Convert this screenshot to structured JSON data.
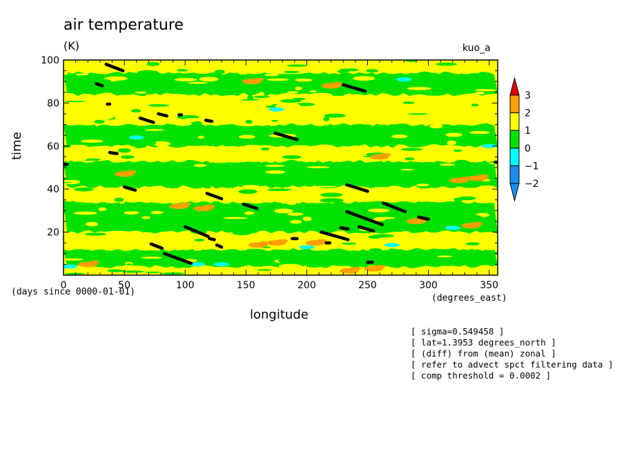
{
  "header": {
    "title": "air temperature",
    "units": "(K)",
    "run_label": "kuo_a"
  },
  "axes": {
    "xlabel": "longitude",
    "ylabel": "time",
    "x_units": "(degrees_east)",
    "time_units": "(days since 0000-01-01)"
  },
  "notes": [
    "[ sigma=0.549458 ]",
    "[ lat=1.3953 degrees_north ]",
    "[ (diff) from (mean) zonal ]",
    "[ refer to advect spct filtering data ]",
    "[ comp threshold = 0.0002 ]"
  ],
  "chart_data": {
    "type": "heatmap",
    "title": "air temperature",
    "units": "(K)",
    "xlabel": "longitude",
    "ylabel": "time",
    "xlim": [
      0,
      357
    ],
    "ylim": [
      0,
      100
    ],
    "x_ticks": [
      0,
      50,
      100,
      150,
      200,
      250,
      300,
      350
    ],
    "y_ticks": [
      20,
      40,
      60,
      80,
      100
    ],
    "colorbar": {
      "levels": [
        -2,
        -1,
        0,
        1,
        2,
        3
      ],
      "colors": [
        "#1e8cf0",
        "#00ffff",
        "#00e100",
        "#ffff00",
        "#ffa000",
        "#e60000"
      ],
      "extend": "both"
    },
    "background_band_colors": [
      "#00e100",
      "#00ffff"
    ],
    "bands": [
      {
        "t": [
          0,
          4
        ],
        "value": 0.3
      },
      {
        "t": [
          4,
          12
        ],
        "value": -0.4
      },
      {
        "t": [
          12,
          20
        ],
        "value": 0.4
      },
      {
        "t": [
          20,
          34
        ],
        "value": -0.3
      },
      {
        "t": [
          34,
          41
        ],
        "value": 0.5
      },
      {
        "t": [
          41,
          53
        ],
        "value": -0.5
      },
      {
        "t": [
          53,
          60
        ],
        "value": 0.3
      },
      {
        "t": [
          60,
          70
        ],
        "value": -0.4
      },
      {
        "t": [
          70,
          84
        ],
        "value": 0.5
      },
      {
        "t": [
          84,
          94
        ],
        "value": -0.3
      },
      {
        "t": [
          94,
          100
        ],
        "value": 0.4
      }
    ],
    "warm_patches": [
      {
        "lon": 95,
        "t": 32,
        "value": 1.3
      },
      {
        "lon": 115,
        "t": 31,
        "value": 1.2
      },
      {
        "lon": 160,
        "t": 14,
        "value": 1.2
      },
      {
        "lon": 175,
        "t": 15,
        "value": 1.1
      },
      {
        "lon": 207,
        "t": 15,
        "value": 1.2
      },
      {
        "lon": 235,
        "t": 2,
        "value": 1.2
      },
      {
        "lon": 255,
        "t": 3,
        "value": 1.1
      },
      {
        "lon": 290,
        "t": 25,
        "value": 1.2
      },
      {
        "lon": 325,
        "t": 44,
        "value": 1.1
      },
      {
        "lon": 340,
        "t": 45,
        "value": 1.2
      },
      {
        "lon": 335,
        "t": 23,
        "value": 1.1
      },
      {
        "lon": 20,
        "t": 5,
        "value": 1.1
      },
      {
        "lon": 155,
        "t": 90,
        "value": 1.1
      },
      {
        "lon": 220,
        "t": 88,
        "value": 1.1
      },
      {
        "lon": 50,
        "t": 47,
        "value": 1.1
      },
      {
        "lon": 260,
        "t": 55,
        "value": 1.1
      }
    ],
    "cold_patches": [
      {
        "lon": 5,
        "t": 4,
        "value": -1.2
      },
      {
        "lon": 110,
        "t": 5,
        "value": -1.3
      },
      {
        "lon": 130,
        "t": 5,
        "value": -1.2
      },
      {
        "lon": 200,
        "t": 13,
        "value": -1.1
      },
      {
        "lon": 270,
        "t": 14,
        "value": -1.1
      },
      {
        "lon": 320,
        "t": 22,
        "value": -1.2
      },
      {
        "lon": 350,
        "t": 60,
        "value": -1.1
      },
      {
        "lon": 175,
        "t": 77,
        "value": -1.1
      },
      {
        "lon": 60,
        "t": 64,
        "value": -1.1
      },
      {
        "lon": 280,
        "t": 91,
        "value": -1.1
      }
    ],
    "dark_segments": [
      {
        "x": [
          35,
          49
        ],
        "t": [
          98,
          95
        ]
      },
      {
        "x": [
          27,
          32
        ],
        "t": [
          89,
          88
        ]
      },
      {
        "x": [
          36,
          38
        ],
        "t": [
          79.5,
          79.5
        ]
      },
      {
        "x": [
          63,
          74
        ],
        "t": [
          73,
          71
        ]
      },
      {
        "x": [
          78,
          85
        ],
        "t": [
          75,
          74
        ]
      },
      {
        "x": [
          95,
          97
        ],
        "t": [
          74.5,
          74.5
        ]
      },
      {
        "x": [
          117,
          122
        ],
        "t": [
          72,
          71.5
        ]
      },
      {
        "x": [
          38,
          44
        ],
        "t": [
          57,
          56.5
        ]
      },
      {
        "x": [
          174,
          192
        ],
        "t": [
          66,
          63
        ]
      },
      {
        "x": [
          230,
          248
        ],
        "t": [
          88.5,
          85.5
        ]
      },
      {
        "x": [
          0,
          3
        ],
        "t": [
          51.5,
          51.5
        ]
      },
      {
        "x": [
          355,
          357
        ],
        "t": [
          52.5,
          52.5
        ]
      },
      {
        "x": [
          50,
          59
        ],
        "t": [
          41,
          39.5
        ]
      },
      {
        "x": [
          118,
          130
        ],
        "t": [
          38,
          35.5
        ]
      },
      {
        "x": [
          148,
          159
        ],
        "t": [
          33,
          31
        ]
      },
      {
        "x": [
          233,
          250
        ],
        "t": [
          42,
          39
        ]
      },
      {
        "x": [
          263,
          281
        ],
        "t": [
          33.5,
          29.5
        ]
      },
      {
        "x": [
          292,
          300
        ],
        "t": [
          27,
          26
        ]
      },
      {
        "x": [
          233,
          262
        ],
        "t": [
          29.5,
          23.5
        ]
      },
      {
        "x": [
          100,
          119
        ],
        "t": [
          22.5,
          18
        ]
      },
      {
        "x": [
          120,
          124
        ],
        "t": [
          17,
          16.5
        ]
      },
      {
        "x": [
          126,
          130
        ],
        "t": [
          14,
          13
        ]
      },
      {
        "x": [
          228,
          234
        ],
        "t": [
          22,
          21.5
        ]
      },
      {
        "x": [
          243,
          255
        ],
        "t": [
          22.5,
          20.5
        ]
      },
      {
        "x": [
          212,
          234
        ],
        "t": [
          20,
          16.5
        ]
      },
      {
        "x": [
          188,
          192
        ],
        "t": [
          17,
          17
        ]
      },
      {
        "x": [
          216,
          219
        ],
        "t": [
          15,
          15
        ]
      },
      {
        "x": [
          72,
          81
        ],
        "t": [
          14.5,
          12.5
        ]
      },
      {
        "x": [
          83,
          105
        ],
        "t": [
          10,
          5.5
        ]
      },
      {
        "x": [
          250,
          254
        ],
        "t": [
          6,
          6
        ]
      }
    ]
  }
}
